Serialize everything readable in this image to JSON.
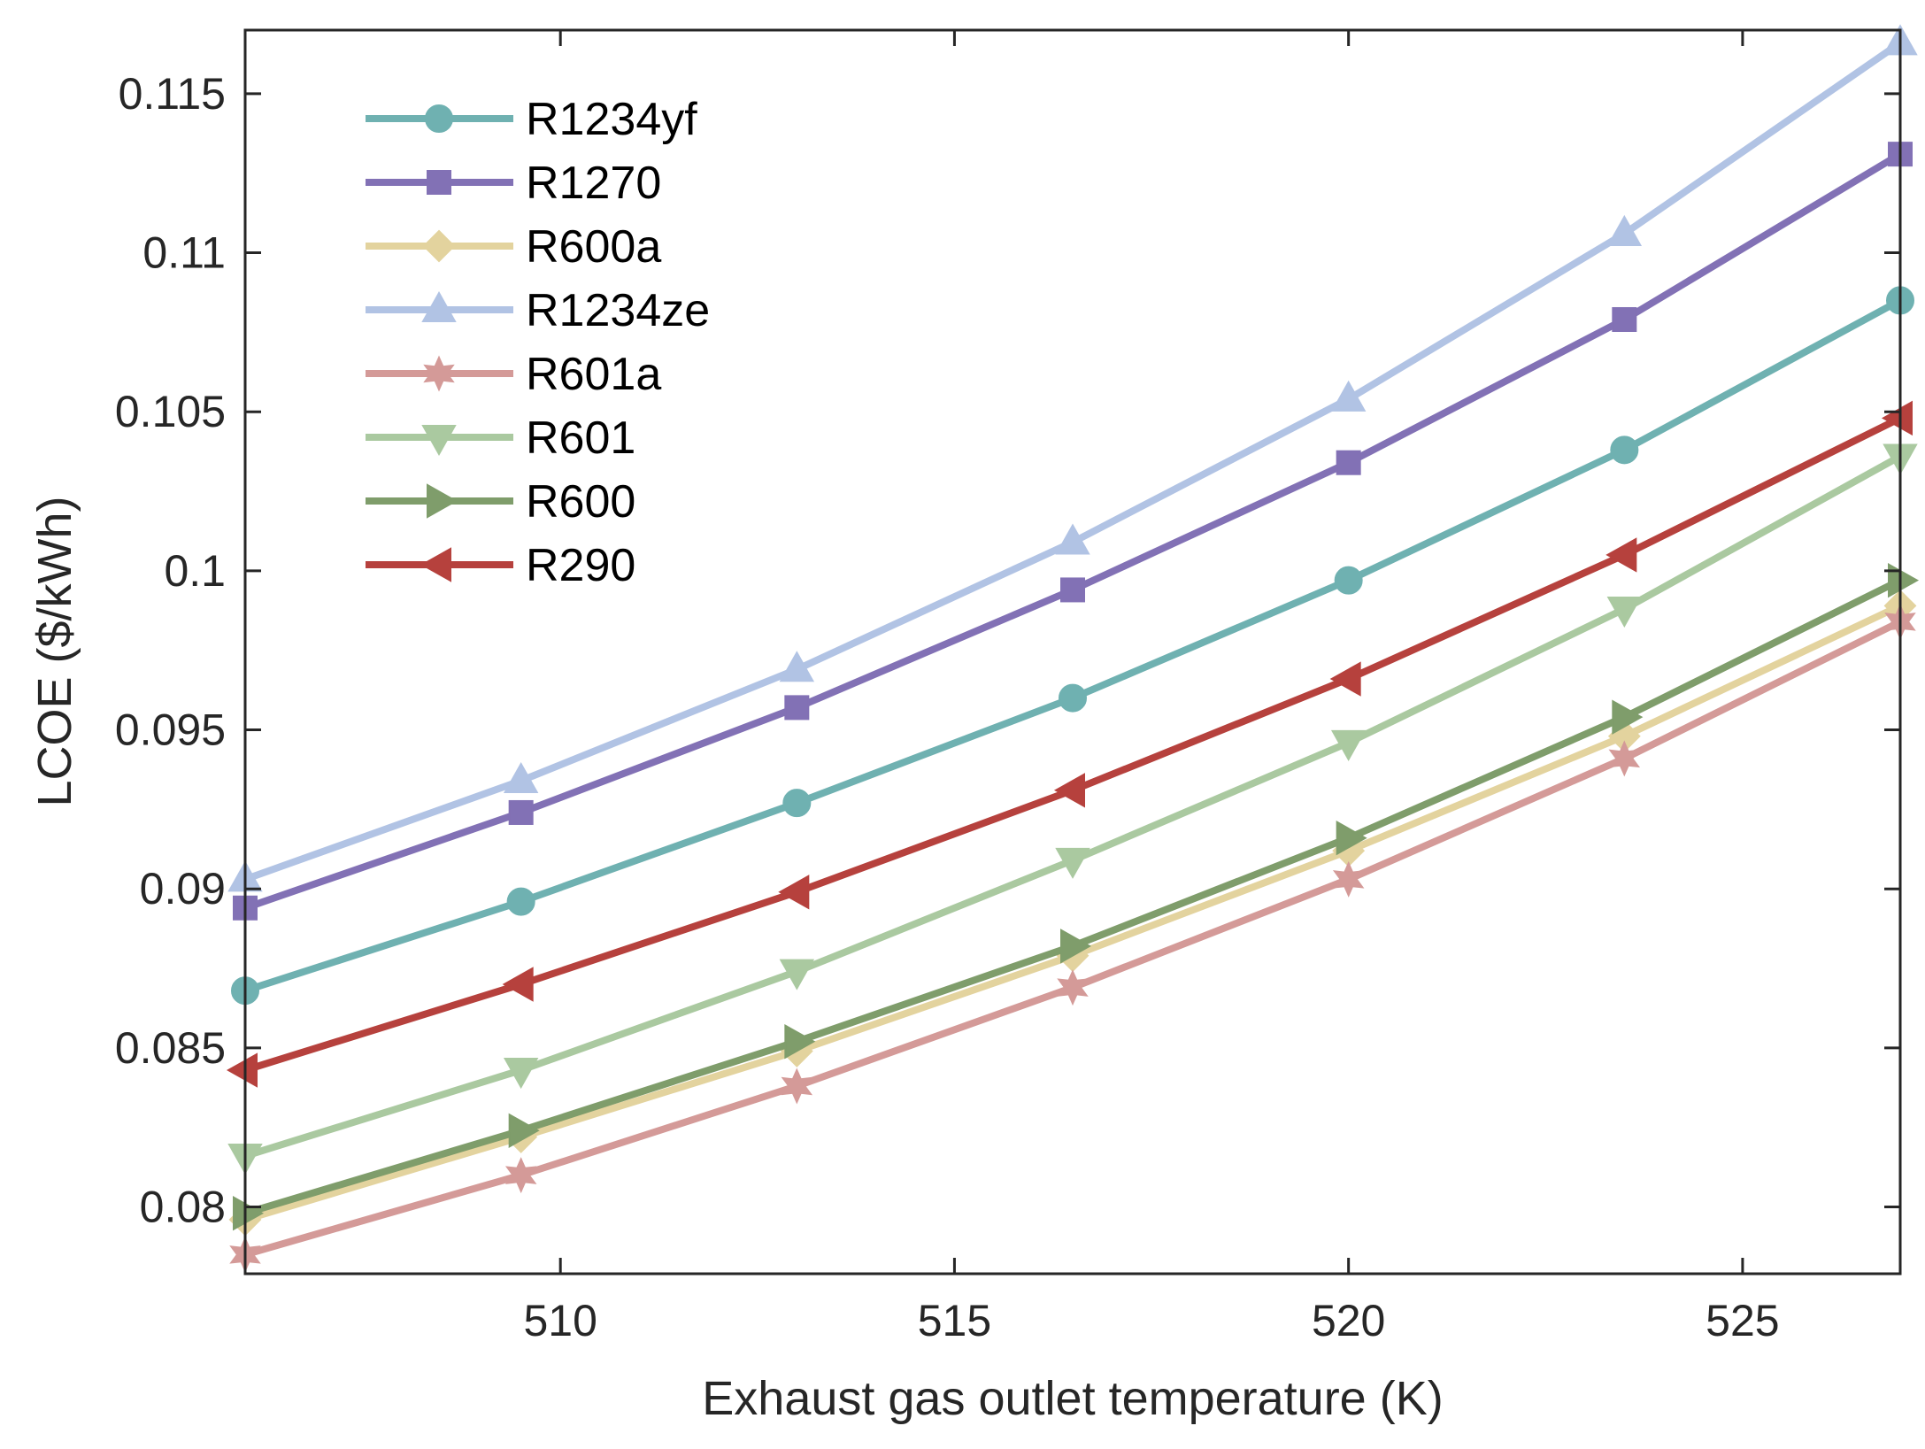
{
  "chart_data": {
    "type": "line",
    "title": "",
    "xlabel": "Exhaust gas outlet temperature (K)",
    "ylabel": "LCOE ($/kWh)",
    "xlim": [
      506,
      527
    ],
    "ylim": [
      0.0779,
      0.117
    ],
    "xticks": [
      510,
      515,
      520,
      525
    ],
    "xtick_labels": [
      "510",
      "515",
      "520",
      "525"
    ],
    "yticks": [
      0.08,
      0.085,
      0.09,
      0.095,
      0.1,
      0.105,
      0.11,
      0.115
    ],
    "ytick_labels": [
      "0.08",
      "0.085",
      "0.09",
      "0.095",
      "0.1",
      "0.105",
      "0.11",
      "0.115"
    ],
    "x": [
      506,
      509.5,
      513,
      516.5,
      520,
      523.5,
      527
    ],
    "legend_position": "top-left",
    "series": [
      {
        "name": "R1234yf",
        "color": "#6fb1b1",
        "marker": "circle",
        "values": [
          0.0868,
          0.0896,
          0.0927,
          0.096,
          0.0997,
          0.1038,
          0.1085
        ]
      },
      {
        "name": "R1270",
        "color": "#8271b5",
        "marker": "square",
        "values": [
          0.0894,
          0.0924,
          0.0957,
          0.0994,
          0.1034,
          0.1079,
          0.1131
        ]
      },
      {
        "name": "R600a",
        "color": "#e3d39e",
        "marker": "diamond",
        "values": [
          0.0796,
          0.0822,
          0.0849,
          0.0879,
          0.0912,
          0.0948,
          0.0989
        ]
      },
      {
        "name": "R1234ze",
        "color": "#b1c3e4",
        "marker": "triangle-up",
        "values": [
          0.0903,
          0.0934,
          0.0969,
          0.1009,
          0.1054,
          0.1106,
          0.1166
        ]
      },
      {
        "name": "R601a",
        "color": "#d49a98",
        "marker": "hexagram",
        "values": [
          0.0785,
          0.081,
          0.0838,
          0.0869,
          0.0903,
          0.0941,
          0.0984
        ]
      },
      {
        "name": "R601",
        "color": "#aac9a0",
        "marker": "triangle-down",
        "values": [
          0.0816,
          0.0843,
          0.0874,
          0.0909,
          0.0946,
          0.0988,
          0.1036
        ]
      },
      {
        "name": "R600",
        "color": "#7f9d6b",
        "marker": "triangle-right",
        "values": [
          0.0798,
          0.0824,
          0.0852,
          0.0882,
          0.0916,
          0.0954,
          0.0997
        ]
      },
      {
        "name": "R290",
        "color": "#b6413d",
        "marker": "triangle-left",
        "values": [
          0.0843,
          0.087,
          0.0899,
          0.0931,
          0.0966,
          0.1005,
          0.1048
        ]
      }
    ]
  }
}
